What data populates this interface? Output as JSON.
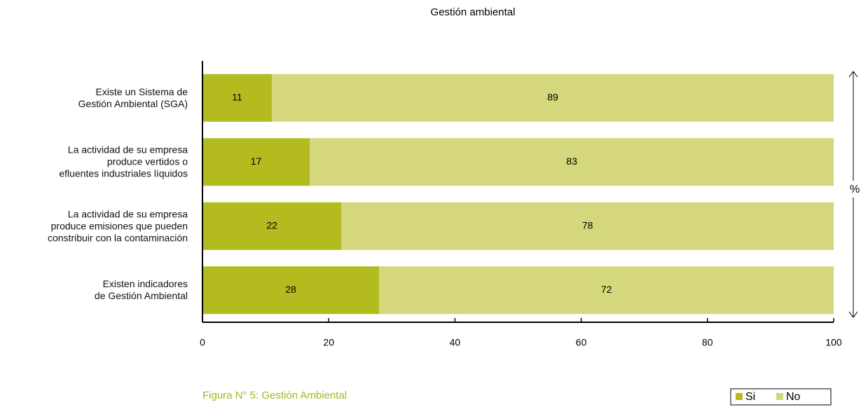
{
  "chart_data": {
    "type": "stacked_barh",
    "title": "Gestión ambiental",
    "categories": [
      "Existe un Sistema de\nGestión Ambiental (SGA)",
      "La actividad de su empresa\nproduce vertidos o\nefluentes industriales líquidos",
      "La actividad de su empresa\nproduce emisiones que pueden\nconstribuir con la contaminación",
      "Existen indicadores\nde Gestión Ambiental"
    ],
    "series": [
      {
        "name": "Si",
        "color": "#b3bb1f",
        "values": [
          11,
          17,
          22,
          28
        ]
      },
      {
        "name": "No",
        "color": "#d4d77c",
        "values": [
          89,
          83,
          78,
          72
        ]
      }
    ],
    "xlim": [
      0,
      100
    ],
    "xticks": [
      0,
      20,
      40,
      60,
      80,
      100
    ],
    "xlabel": "%",
    "caption": "Figura N° 5: Gestión Ambiental"
  }
}
